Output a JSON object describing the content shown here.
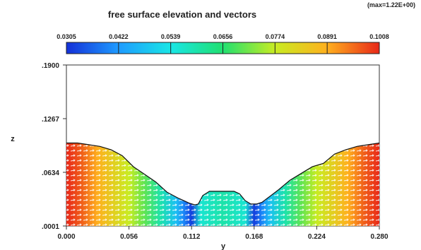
{
  "chart_data": {
    "type": "heatmap",
    "title": "free surface elevation and vectors",
    "max_annotation": "(max=1.22E+00)",
    "xlabel": "y",
    "ylabel": "z",
    "xlim": [
      0.0,
      0.28
    ],
    "ylim": [
      0.0001,
      0.19
    ],
    "x_ticks": [
      "0.000",
      "0.056",
      "0.112",
      "0.168",
      "0.224",
      "0.280"
    ],
    "y_ticks": [
      ".0001",
      ".0634",
      ".1267",
      ".1900"
    ],
    "colorbar": {
      "labels": [
        "0.0305",
        "0.0422",
        "0.0539",
        "0.0656",
        "0.0774",
        "0.0891",
        "0.1008"
      ],
      "colors": [
        "#1430d8",
        "#1e9bff",
        "#19e6e6",
        "#20e070",
        "#c8ec22",
        "#ffb01e",
        "#e82818"
      ]
    },
    "free_surface": {
      "y": [
        0.0,
        0.01,
        0.02,
        0.03,
        0.04,
        0.05,
        0.06,
        0.07,
        0.08,
        0.09,
        0.1,
        0.11,
        0.115,
        0.118,
        0.122,
        0.128,
        0.132,
        0.14,
        0.15,
        0.155,
        0.16,
        0.165,
        0.17,
        0.175,
        0.18,
        0.19,
        0.2,
        0.21,
        0.22,
        0.23,
        0.24,
        0.25,
        0.26,
        0.27,
        0.28
      ],
      "z": [
        0.098,
        0.098,
        0.096,
        0.094,
        0.09,
        0.083,
        0.07,
        0.061,
        0.052,
        0.04,
        0.033,
        0.027,
        0.025,
        0.026,
        0.036,
        0.041,
        0.041,
        0.041,
        0.041,
        0.038,
        0.03,
        0.026,
        0.026,
        0.028,
        0.033,
        0.043,
        0.054,
        0.062,
        0.07,
        0.074,
        0.085,
        0.09,
        0.094,
        0.096,
        0.098
      ]
    },
    "elevation_color_profile": {
      "y": [
        0.0,
        0.014,
        0.028,
        0.042,
        0.056,
        0.07,
        0.084,
        0.098,
        0.105,
        0.112,
        0.12,
        0.14,
        0.16,
        0.168,
        0.175,
        0.182,
        0.196,
        0.21,
        0.224,
        0.238,
        0.252,
        0.266,
        0.28
      ],
      "value": [
        0.1008,
        0.096,
        0.0891,
        0.083,
        0.0774,
        0.07,
        0.06,
        0.048,
        0.04,
        0.032,
        0.056,
        0.06,
        0.056,
        0.032,
        0.04,
        0.048,
        0.06,
        0.07,
        0.0774,
        0.083,
        0.0891,
        0.096,
        0.1008
      ]
    },
    "grid": false
  }
}
